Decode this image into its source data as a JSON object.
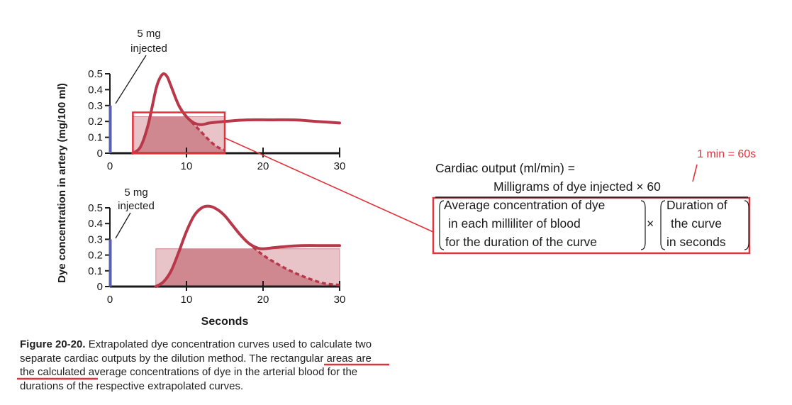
{
  "chart_data": [
    {
      "type": "line",
      "panel": "top",
      "xlabel": "",
      "ylabel": "Dye concentration in artery (mg/100 ml)",
      "xlim": [
        0,
        30
      ],
      "ylim": [
        0,
        0.5
      ],
      "x_ticks": [
        "0",
        "10",
        "20",
        "30"
      ],
      "y_ticks": [
        "0",
        "0.1",
        "0.2",
        "0.3",
        "0.4",
        "0.5"
      ],
      "annotation": {
        "line1": "5 mg",
        "line2": "injected"
      },
      "injection_bar": {
        "x": 0,
        "height": 0.3
      },
      "measured_curve": {
        "x": [
          3,
          4,
          5,
          6,
          6.5,
          7,
          7.5,
          8,
          9,
          10,
          11,
          12,
          13,
          15,
          18,
          21,
          24,
          27,
          30
        ],
        "y": [
          0.0,
          0.04,
          0.18,
          0.4,
          0.47,
          0.5,
          0.48,
          0.42,
          0.3,
          0.23,
          0.19,
          0.18,
          0.19,
          0.2,
          0.21,
          0.21,
          0.21,
          0.2,
          0.19
        ]
      },
      "extrapolated_curve": {
        "x": [
          10,
          11,
          12,
          13,
          14,
          15
        ],
        "y": [
          0.23,
          0.18,
          0.13,
          0.08,
          0.04,
          0.02
        ]
      },
      "average_rectangle": {
        "x_start": 3,
        "x_end": 15,
        "y": 0.23
      }
    },
    {
      "type": "line",
      "panel": "bottom",
      "xlabel": "Seconds",
      "ylabel": "Dye concentration in artery (mg/100 ml)",
      "xlim": [
        0,
        30
      ],
      "ylim": [
        0,
        0.5
      ],
      "x_ticks": [
        "0",
        "10",
        "20",
        "30"
      ],
      "y_ticks": [
        "0",
        "0.1",
        "0.2",
        "0.3",
        "0.4",
        "0.5"
      ],
      "annotation": {
        "line1": "5 mg",
        "line2": "injected"
      },
      "injection_bar": {
        "x": 0,
        "height": 0.3
      },
      "measured_curve": {
        "x": [
          6,
          7,
          8,
          9,
          10,
          11,
          12,
          13,
          14,
          15,
          16,
          17,
          18,
          19,
          20,
          22,
          25,
          28,
          30
        ],
        "y": [
          0.0,
          0.03,
          0.1,
          0.22,
          0.35,
          0.45,
          0.5,
          0.51,
          0.49,
          0.45,
          0.39,
          0.33,
          0.28,
          0.25,
          0.24,
          0.25,
          0.26,
          0.26,
          0.26
        ]
      },
      "extrapolated_curve": {
        "x": [
          18,
          20,
          22,
          24,
          26,
          28,
          30
        ],
        "y": [
          0.28,
          0.2,
          0.14,
          0.09,
          0.05,
          0.02,
          0.01
        ]
      },
      "average_rectangle": {
        "x_start": 6,
        "x_end": 30,
        "y": 0.24
      }
    }
  ],
  "caption": {
    "label": "Figure 20-20.",
    "text_before": " Extrapolated dye concentration curves used to calculate two separate cardiac outputs by the dilution method. ",
    "highlighted": "The rectangular areas are",
    "text_after": " the calculated average concentrations of dye in the arterial blood for the durations of the respective extrapolated curves."
  },
  "formula": {
    "lhs": "Cardiac output (ml/min) =",
    "numerator": "Milligrams of dye injected × 60",
    "denominator_left": [
      "Average concentration of dye",
      "in each milliliter of blood",
      "for the duration of the curve"
    ],
    "times": "×",
    "denominator_right": [
      "Duration of",
      "the curve",
      "in seconds"
    ]
  },
  "note": "1 min = 60s",
  "colors": {
    "curve": "#b8384a",
    "rect_fill": "#d08890",
    "rect_fill_light": "#e8c4c8",
    "injection": "#5a5fb0",
    "annotation_red": "#e0333b",
    "axis": "#1a1a1a"
  }
}
